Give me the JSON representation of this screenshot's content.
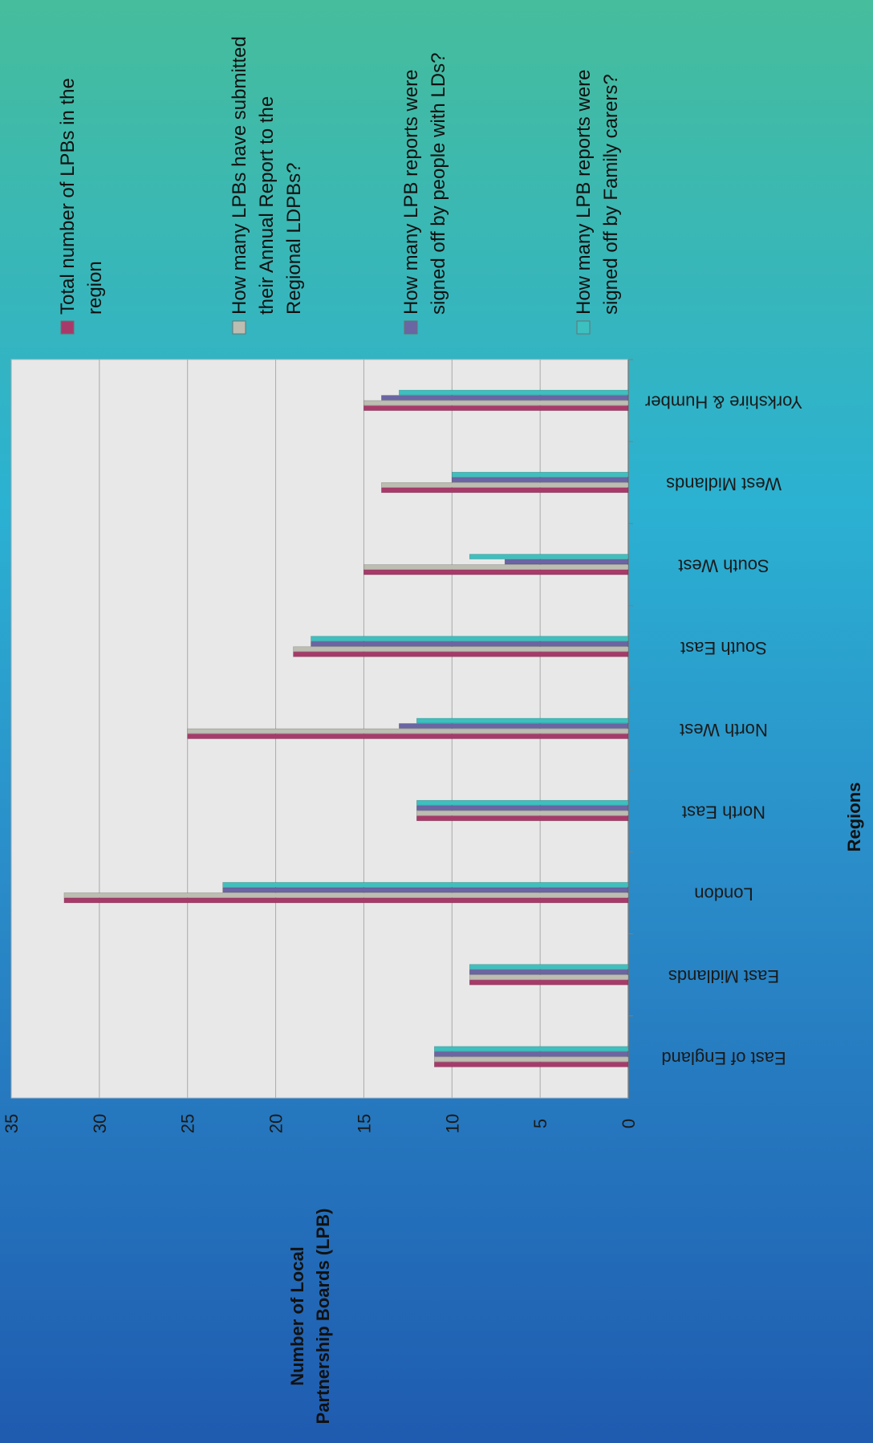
{
  "chart_data": {
    "type": "bar",
    "orientation": "horizontal-rotated",
    "title": "",
    "xlabel": "Regions",
    "ylabel_line1": "Number of Local",
    "ylabel_line2": "Partnership Boards (LPB)",
    "ylim": [
      0,
      35
    ],
    "yticks": [
      "0",
      "5",
      "10",
      "15",
      "20",
      "25",
      "30",
      "35"
    ],
    "grid": true,
    "legend_position": "right",
    "categories": [
      "East of England",
      "East Midlands",
      "London",
      "North East",
      "North West",
      "South East",
      "South West",
      "West Midlands",
      "Yorkshire & Humber"
    ],
    "series": [
      {
        "name": "Total number of LPBs in the region",
        "name_lines": [
          "Total number of LPBs in the",
          "region"
        ],
        "color": "#a83a6a",
        "values": [
          11,
          9,
          32,
          12,
          25,
          19,
          15,
          14,
          15
        ]
      },
      {
        "name": "How many LPBs have submitted their Annual Report to the Regional LDPBs?",
        "name_lines": [
          "How many LPBs have submitted",
          "their Annual Report to the",
          "Regional LDPBs?"
        ],
        "color": "#bdbdb2",
        "values": [
          11,
          9,
          32,
          12,
          25,
          19,
          15,
          14,
          15
        ]
      },
      {
        "name": "How many LPB reports were signed off by people with LDs?",
        "name_lines": [
          "How many LPB reports were",
          "signed off by people with LDs?"
        ],
        "color": "#6a65a3",
        "values": [
          11,
          9,
          23,
          12,
          13,
          18,
          7,
          10,
          14
        ]
      },
      {
        "name": "How many LPB reports were signed off by Family carers?",
        "name_lines": [
          "How many LPB reports were",
          "signed off by Family carers?"
        ],
        "color": "#3cc0c0",
        "values": [
          11,
          9,
          23,
          12,
          12,
          18,
          9,
          10,
          13
        ]
      }
    ]
  }
}
